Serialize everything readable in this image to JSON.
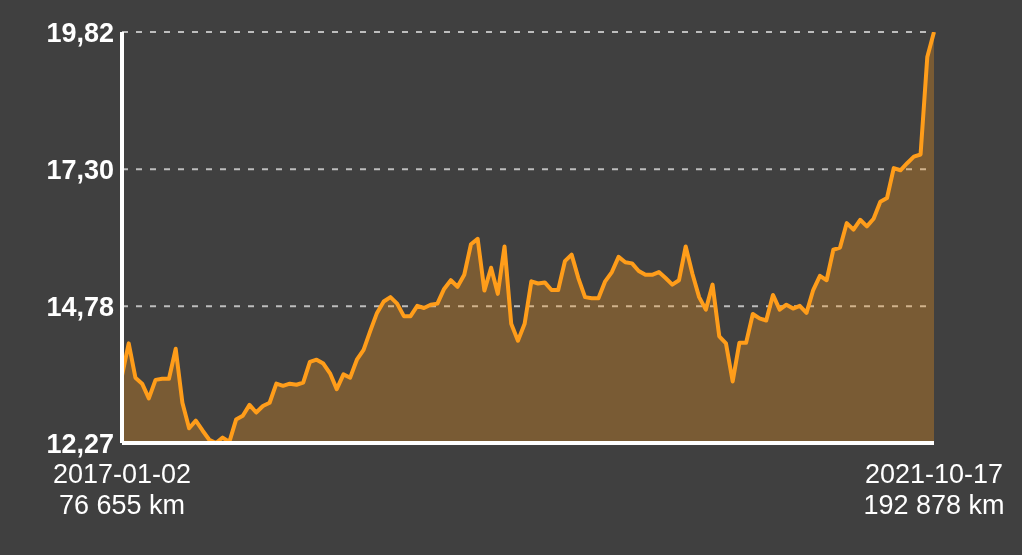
{
  "chart_data": {
    "type": "area",
    "color": "#ff9d1a",
    "ylim": [
      12.27,
      19.82
    ],
    "yticks": [
      {
        "value": 12.27,
        "label": "12,27"
      },
      {
        "value": 14.78,
        "label": "14,78"
      },
      {
        "value": 17.3,
        "label": "17,30"
      },
      {
        "value": 19.82,
        "label": "19,82"
      }
    ],
    "grid": "y",
    "categories": [
      "2017-01-02\n76 655 km",
      null,
      null,
      null,
      null,
      null,
      null,
      null,
      null,
      null,
      null,
      null,
      null,
      null,
      null,
      null,
      null,
      null,
      null,
      null,
      null,
      null,
      null,
      null,
      null,
      null,
      null,
      null,
      null,
      null,
      null,
      null,
      null,
      null,
      null,
      null,
      null,
      null,
      null,
      null,
      null,
      null,
      null,
      null,
      null,
      null,
      null,
      null,
      null,
      null,
      null,
      null,
      null,
      null,
      null,
      null,
      null,
      null,
      null,
      null,
      null,
      null,
      null,
      null,
      null,
      null,
      null,
      null,
      null,
      null,
      null,
      null,
      null,
      null,
      null,
      null,
      null,
      null,
      null,
      null,
      null,
      null,
      null,
      null,
      null,
      null,
      null,
      null,
      null,
      null,
      null,
      null,
      null,
      null,
      null,
      null,
      null,
      null,
      null,
      null,
      null,
      null,
      null,
      null,
      null,
      null,
      null,
      null,
      null,
      null,
      null,
      null,
      null,
      null,
      null,
      null,
      null,
      null,
      null,
      null,
      null,
      "2021-10-17\n192 878 km"
    ],
    "values": [
      13.51,
      14.1,
      13.47,
      13.36,
      13.09,
      13.43,
      13.45,
      13.45,
      14.0,
      13.01,
      12.54,
      12.68,
      12.5,
      12.33,
      12.27,
      12.37,
      12.29,
      12.7,
      12.77,
      12.97,
      12.83,
      12.95,
      13.01,
      13.36,
      13.32,
      13.36,
      13.34,
      13.38,
      13.76,
      13.8,
      13.73,
      13.55,
      13.26,
      13.53,
      13.47,
      13.8,
      13.98,
      14.33,
      14.66,
      14.87,
      14.95,
      14.83,
      14.6,
      14.6,
      14.79,
      14.75,
      14.81,
      14.83,
      15.1,
      15.26,
      15.14,
      15.36,
      15.92,
      16.02,
      15.07,
      15.49,
      15.01,
      15.88,
      14.46,
      14.15,
      14.46,
      15.24,
      15.2,
      15.22,
      15.08,
      15.08,
      15.61,
      15.73,
      15.3,
      14.95,
      14.93,
      14.93,
      15.24,
      15.41,
      15.69,
      15.59,
      15.57,
      15.43,
      15.36,
      15.36,
      15.41,
      15.3,
      15.18,
      15.26,
      15.88,
      15.38,
      14.95,
      14.72,
      15.18,
      14.23,
      14.1,
      13.4,
      14.11,
      14.11,
      14.64,
      14.56,
      14.52,
      14.99,
      14.72,
      14.81,
      14.74,
      14.79,
      14.66,
      15.08,
      15.34,
      15.26,
      15.82,
      15.86,
      16.31,
      16.19,
      16.37,
      16.25,
      16.39,
      16.7,
      16.77,
      17.32,
      17.28,
      17.41,
      17.53,
      17.57,
      19.36,
      19.82
    ]
  }
}
